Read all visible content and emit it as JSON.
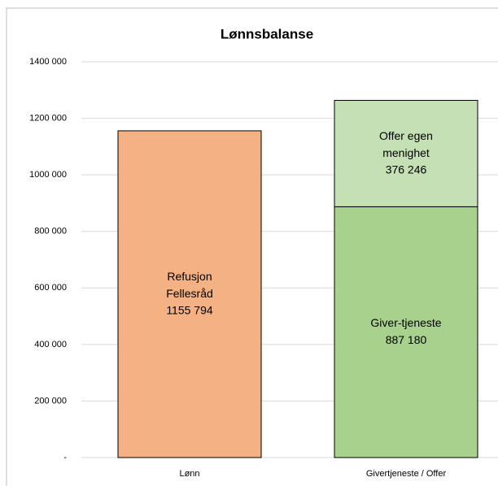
{
  "chart_data": {
    "type": "stacked_bar",
    "title": "Lønnsbalanse",
    "categories": [
      "Lønn",
      "Givertjeneste / Offer"
    ],
    "series": [
      {
        "name": "Refusjon Fellesråd",
        "color": "#f4b183",
        "values": [
          1155794,
          null
        ],
        "value_labels": [
          "1155 794",
          null
        ]
      },
      {
        "name": "Giver-tjeneste",
        "color": "#a9d18e",
        "values": [
          null,
          887180
        ],
        "value_labels": [
          null,
          "887 180"
        ]
      },
      {
        "name": "Offer egen menighet",
        "color": "#c5e0b4",
        "values": [
          null,
          376246
        ],
        "value_labels": [
          null,
          "376 246"
        ]
      }
    ],
    "ylim": [
      0,
      1400000
    ],
    "yticks": [
      {
        "value": 0,
        "label": "-"
      },
      {
        "value": 200000,
        "label": "200 000"
      },
      {
        "value": 400000,
        "label": "400 000"
      },
      {
        "value": 600000,
        "label": "600 000"
      },
      {
        "value": 800000,
        "label": "800 000"
      },
      {
        "value": 1000000,
        "label": "1000 000"
      },
      {
        "value": 1200000,
        "label": "1200 000"
      },
      {
        "value": 1400000,
        "label": "1400 000"
      }
    ],
    "grid": true
  }
}
